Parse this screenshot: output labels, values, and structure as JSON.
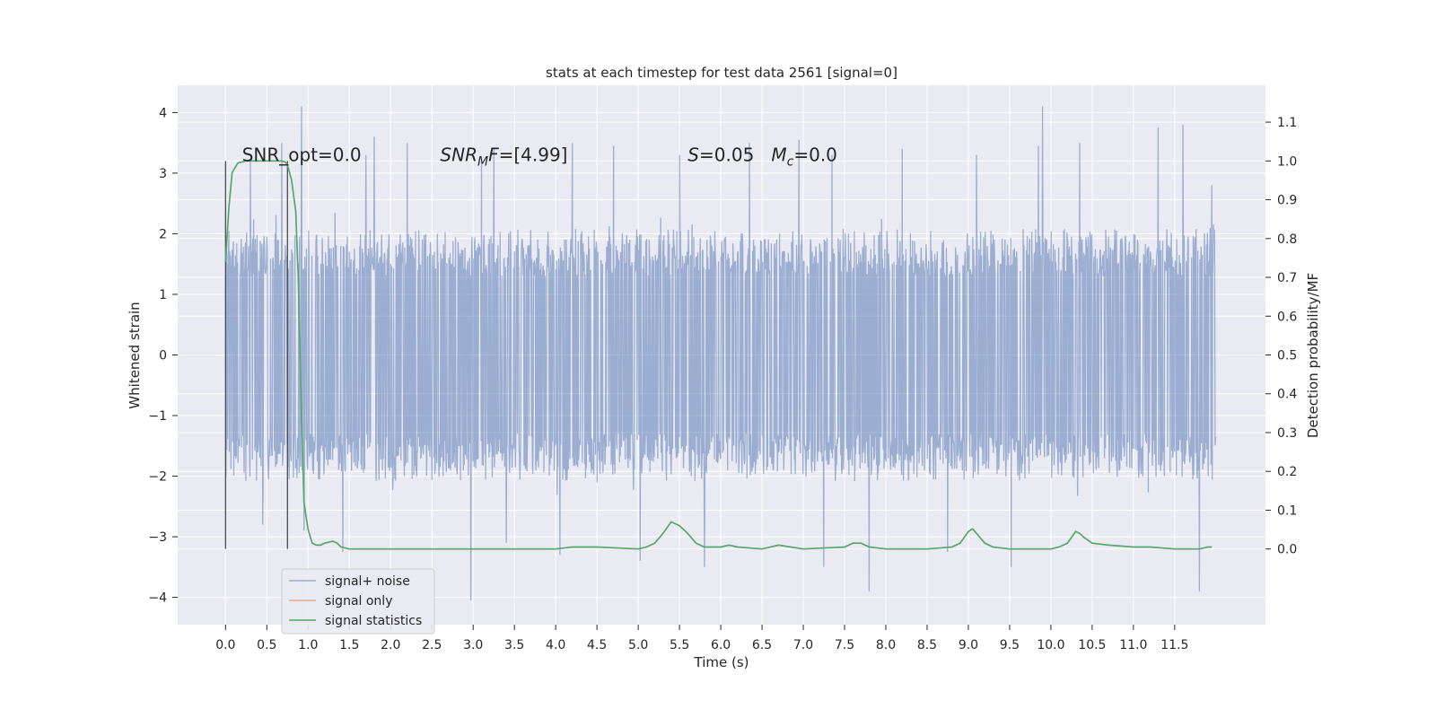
{
  "chart_data": {
    "type": "line",
    "title": "stats at each timestep for test data 2561 [signal=0]",
    "xlabel": "Time (s)",
    "ylabel_left": "Whitened strain",
    "ylabel_right": "Detection probability/MF",
    "xlim": [
      -0.58,
      12.6
    ],
    "ylim_left": [
      -4.45,
      4.45
    ],
    "ylim_right": [
      -0.195,
      1.195
    ],
    "x_ticks": [
      "0.0",
      "0.5",
      "1.0",
      "1.5",
      "2.0",
      "2.5",
      "3.0",
      "3.5",
      "4.0",
      "4.5",
      "5.0",
      "5.5",
      "6.0",
      "6.5",
      "7.0",
      "7.5",
      "8.0",
      "8.5",
      "9.0",
      "9.5",
      "10.0",
      "10.5",
      "11.0",
      "11.5"
    ],
    "x_tick_values": [
      0,
      0.5,
      1,
      1.5,
      2,
      2.5,
      3,
      3.5,
      4,
      4.5,
      5,
      5.5,
      6,
      6.5,
      7,
      7.5,
      8,
      8.5,
      9,
      9.5,
      10,
      10.5,
      11,
      11.5
    ],
    "y_left_ticks": [
      "−4",
      "−3",
      "−2",
      "−1",
      "0",
      "1",
      "2",
      "3",
      "4"
    ],
    "y_left_tick_values": [
      -4,
      -3,
      -2,
      -1,
      0,
      1,
      2,
      3,
      4
    ],
    "y_right_ticks": [
      "0.0",
      "0.1",
      "0.2",
      "0.3",
      "0.4",
      "0.5",
      "0.6",
      "0.7",
      "0.8",
      "0.9",
      "1.0",
      "1.1"
    ],
    "y_right_tick_values": [
      0,
      0.1,
      0.2,
      0.3,
      0.4,
      0.5,
      0.6,
      0.7,
      0.8,
      0.9,
      1.0,
      1.1
    ],
    "grid": true,
    "legend_position": "lower-left",
    "legend": [
      "signal+ noise",
      "signal only",
      "signal statistics"
    ],
    "annotations": [
      {
        "text": "SNR_opt=0.0",
        "x": 0.2,
        "y": 1.0
      },
      {
        "text": "SNR_MF=[4.99]",
        "x": 2.6,
        "y": 1.0
      },
      {
        "text": "S=0.05   M_c=0.0",
        "x": 5.6,
        "y": 1.0
      }
    ],
    "vlines": [
      {
        "x": 0.0,
        "ymin": -3.2,
        "ymax": 3.2
      },
      {
        "x": 0.75,
        "ymin": -3.2,
        "ymax": 3.2
      }
    ],
    "signal_noise": {
      "name": "signal+ noise",
      "x_range": [
        0.0,
        12.0
      ],
      "typical_range": [
        -1.3,
        1.3
      ],
      "extremes": [
        [
          0.3,
          3.2
        ],
        [
          0.45,
          -2.8
        ],
        [
          0.68,
          3.5
        ],
        [
          0.92,
          4.1
        ],
        [
          0.95,
          -2.9
        ],
        [
          1.42,
          -3.25
        ],
        [
          1.7,
          3.3
        ],
        [
          1.8,
          3.6
        ],
        [
          2.2,
          3.5
        ],
        [
          2.97,
          -4.05
        ],
        [
          3.1,
          3.2
        ],
        [
          3.25,
          3.4
        ],
        [
          3.4,
          -3.1
        ],
        [
          4.05,
          -3.3
        ],
        [
          4.2,
          3.5
        ],
        [
          4.7,
          3.45
        ],
        [
          5.02,
          -3.4
        ],
        [
          5.5,
          3.3
        ],
        [
          5.8,
          -3.5
        ],
        [
          6.35,
          3.5
        ],
        [
          6.95,
          3.55
        ],
        [
          7.25,
          -3.5
        ],
        [
          7.35,
          3.3
        ],
        [
          7.8,
          -3.9
        ],
        [
          8.2,
          3.4
        ],
        [
          8.75,
          -3.25
        ],
        [
          9.1,
          3.3
        ],
        [
          9.52,
          -3.5
        ],
        [
          9.85,
          3.45
        ],
        [
          9.9,
          4.1
        ],
        [
          10.35,
          3.5
        ],
        [
          11.3,
          3.75
        ],
        [
          11.6,
          3.8
        ],
        [
          11.8,
          -3.9
        ],
        [
          11.95,
          2.8
        ]
      ]
    },
    "signal_only": {
      "name": "signal only",
      "x": [],
      "y": []
    },
    "signal_statistics": {
      "name": "signal statistics",
      "x": [
        0.0,
        0.04,
        0.08,
        0.15,
        0.25,
        0.4,
        0.55,
        0.62,
        0.67,
        0.72,
        0.75,
        0.8,
        0.85,
        0.88,
        0.92,
        0.95,
        1.0,
        1.05,
        1.1,
        1.15,
        1.2,
        1.3,
        1.35,
        1.4,
        1.5,
        1.8,
        2.5,
        3.0,
        3.5,
        4.0,
        4.2,
        4.5,
        5.0,
        5.1,
        5.2,
        5.3,
        5.4,
        5.45,
        5.5,
        5.6,
        5.7,
        5.8,
        6.0,
        6.1,
        6.2,
        6.5,
        6.7,
        7.0,
        7.5,
        7.6,
        7.7,
        7.8,
        8.0,
        8.5,
        8.8,
        8.9,
        9.0,
        9.05,
        9.1,
        9.2,
        9.3,
        9.5,
        10.0,
        10.1,
        10.2,
        10.3,
        10.35,
        10.4,
        10.5,
        10.7,
        11.0,
        11.2,
        11.5,
        11.8,
        11.9,
        11.95
      ],
      "y": [
        0.74,
        0.88,
        0.97,
        0.995,
        1.0,
        1.0,
        1.0,
        1.0,
        1.0,
        0.998,
        0.99,
        0.95,
        0.87,
        0.7,
        0.35,
        0.12,
        0.05,
        0.015,
        0.01,
        0.01,
        0.015,
        0.02,
        0.015,
        0.005,
        0.0,
        0.0,
        0.0,
        0.0,
        0.0,
        0.0,
        0.005,
        0.005,
        0.0,
        0.005,
        0.015,
        0.04,
        0.07,
        0.065,
        0.06,
        0.04,
        0.015,
        0.005,
        0.005,
        0.01,
        0.005,
        0.0,
        0.01,
        0.0,
        0.005,
        0.015,
        0.015,
        0.005,
        0.0,
        0.0,
        0.005,
        0.015,
        0.045,
        0.052,
        0.04,
        0.015,
        0.005,
        0.0,
        0.0,
        0.005,
        0.015,
        0.045,
        0.04,
        0.03,
        0.015,
        0.01,
        0.005,
        0.005,
        0.0,
        0.0,
        0.005,
        0.005
      ]
    },
    "colors": {
      "background": "#eaeaf2",
      "grid": "#ffffff",
      "signal_noise": "#4c72b0",
      "signal_only": "#dd8452",
      "signal_statistics": "#55a868",
      "vline": "#4d4d4d",
      "text": "#262626"
    }
  }
}
